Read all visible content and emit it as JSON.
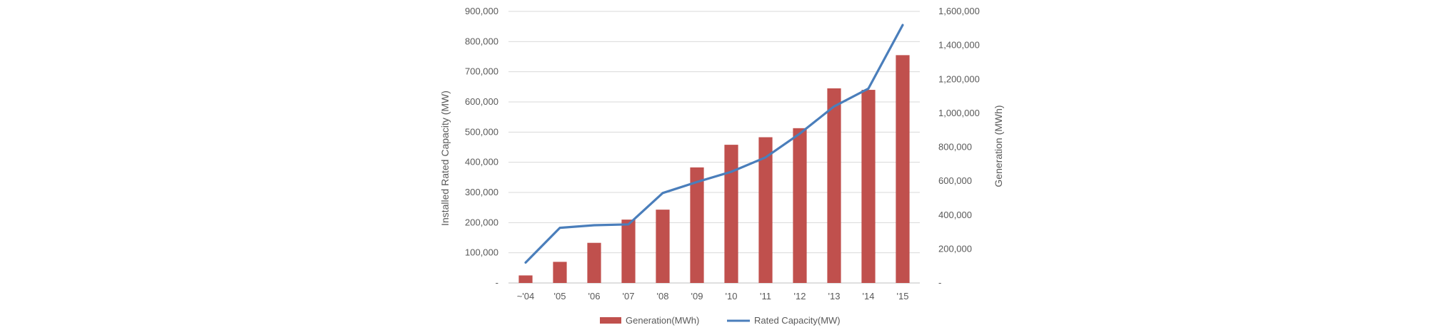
{
  "chart_data": {
    "type": "bar",
    "categories": [
      "~'04",
      "'05",
      "'06",
      "'07",
      "'08",
      "'09",
      "'10",
      "'11",
      "'12",
      "'13",
      "'14",
      "'15"
    ],
    "series": [
      {
        "name": "Generation(MWh)",
        "type": "bar",
        "axis": "left",
        "color": "#c0504d",
        "values": [
          25000,
          70000,
          133000,
          210000,
          243000,
          383000,
          458000,
          483000,
          513000,
          645000,
          640000,
          755000
        ]
      },
      {
        "name": "Rated Capacity(MW)",
        "type": "line",
        "axis": "right",
        "color": "#4a7ebb",
        "values": [
          120000,
          325000,
          340000,
          345000,
          530000,
          595000,
          655000,
          740000,
          880000,
          1040000,
          1145000,
          1520000
        ]
      }
    ],
    "ylabel": "Installed Rated Capacity (MW)",
    "y2label": "Generation (MWh)",
    "ylim": [
      0,
      900000
    ],
    "y2lim": [
      0,
      1600000
    ],
    "yticks": [
      "-",
      "100,000",
      "200,000",
      "300,000",
      "400,000",
      "500,000",
      "600,000",
      "700,000",
      "800,000",
      "900,000"
    ],
    "y2ticks": [
      "-",
      "200,000",
      "400,000",
      "600,000",
      "800,000",
      "1,000,000",
      "1,200,000",
      "1,400,000",
      "1,600,000"
    ],
    "grid": true,
    "legend_position": "bottom"
  }
}
